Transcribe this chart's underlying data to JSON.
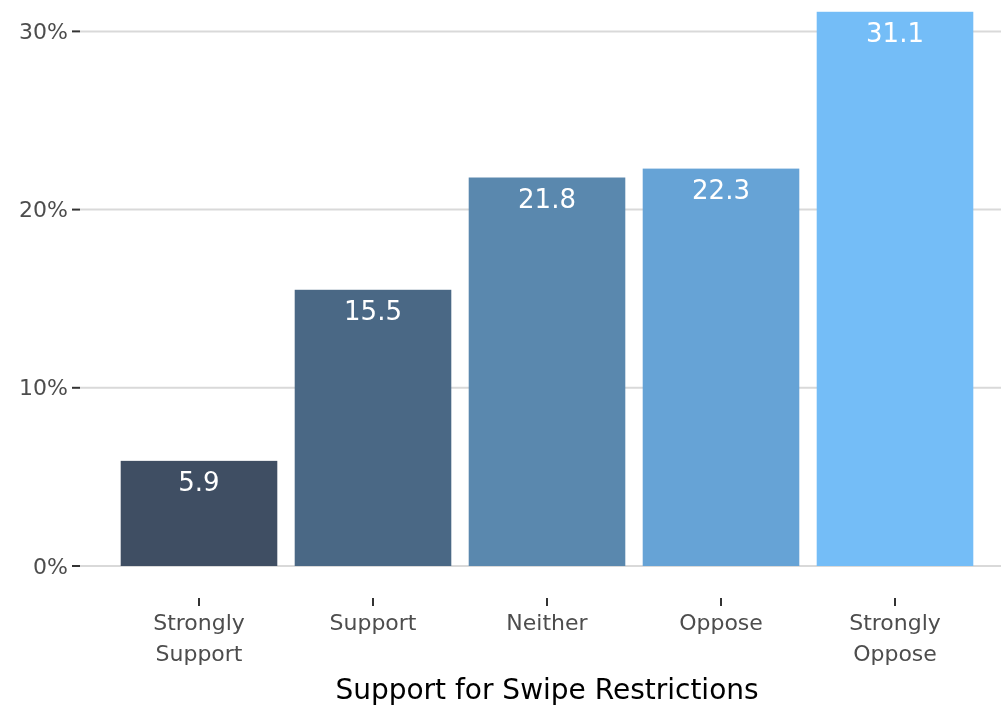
{
  "chart_data": {
    "type": "bar",
    "xlabel": "Support for Swipe Restrictions",
    "categories": [
      "Strongly Support",
      "Support",
      "Neither",
      "Oppose",
      "Strongly Oppose"
    ],
    "values": [
      5.9,
      15.5,
      21.8,
      22.3,
      31.1
    ],
    "colors": [
      "#3f4e63",
      "#4a6885",
      "#5a88ae",
      "#66a3d6",
      "#74bdf7"
    ],
    "ylim": [
      0,
      31.2
    ],
    "yticks": [
      {
        "value": 0,
        "label": "0%"
      },
      {
        "value": 10,
        "label": "10%"
      },
      {
        "value": 20,
        "label": "20%"
      },
      {
        "value": 30,
        "label": "30%"
      }
    ],
    "grid": "y",
    "data_labels": true
  }
}
